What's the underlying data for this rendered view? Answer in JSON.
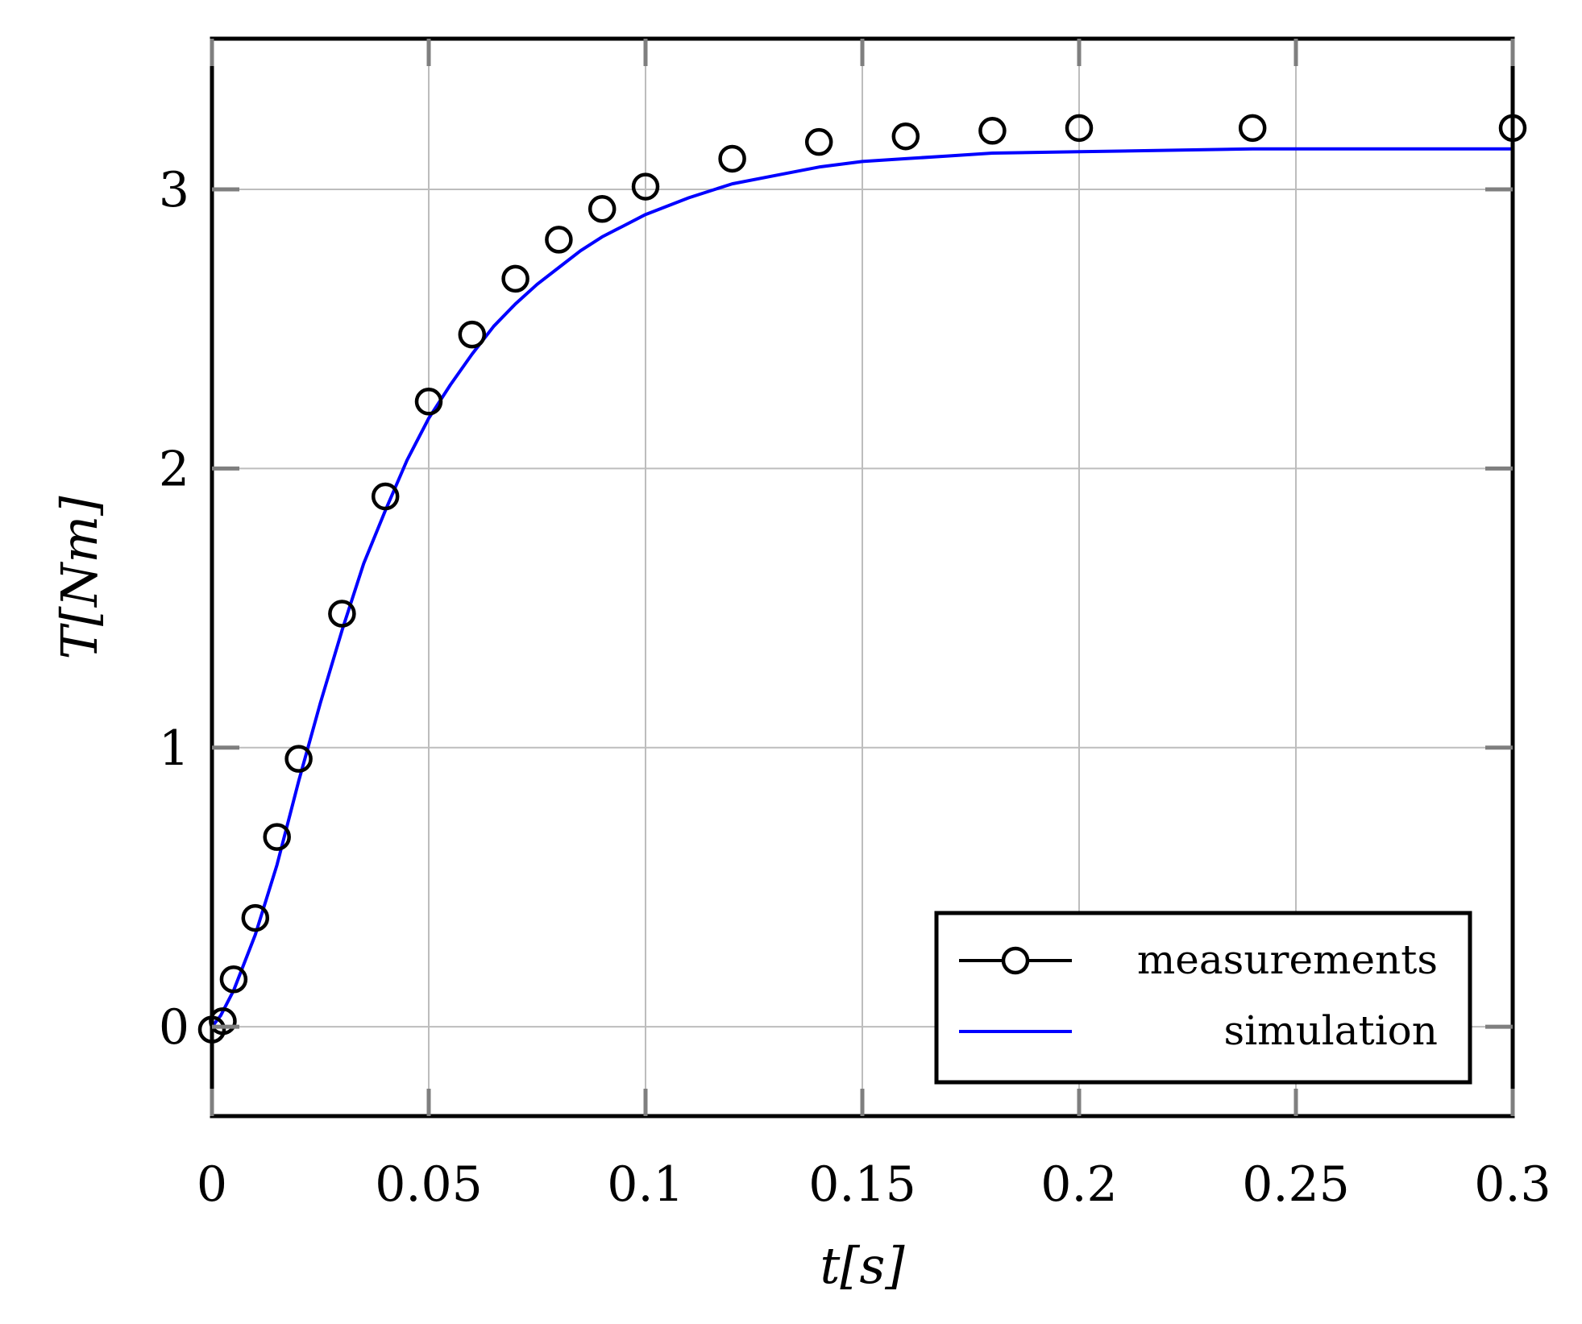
{
  "chart_data": {
    "type": "line",
    "xlabel": "t[s]",
    "ylabel": "T[Nm]",
    "xlim": [
      0,
      0.3
    ],
    "ylim": [
      -0.32,
      3.54
    ],
    "xticks": [
      0,
      0.05,
      0.1,
      0.15,
      0.2,
      0.25,
      0.3
    ],
    "xtick_labels": [
      "0",
      "0.05",
      "0.1",
      "0.15",
      "0.2",
      "0.25",
      "0.3"
    ],
    "yticks": [
      0,
      1,
      2,
      3
    ],
    "ytick_labels": [
      "0",
      "1",
      "2",
      "3"
    ],
    "grid": true,
    "legend_position": "bottom-right",
    "colors": {
      "measurements": "#000000",
      "simulation": "#0000ff"
    },
    "series": [
      {
        "name": "measurements",
        "style": "markers",
        "marker": "circle",
        "x": [
          0,
          0.0025,
          0.005,
          0.01,
          0.015,
          0.02,
          0.03,
          0.04,
          0.05,
          0.06,
          0.07,
          0.08,
          0.09,
          0.1,
          0.12,
          0.14,
          0.16,
          0.18,
          0.2,
          0.24,
          0.3
        ],
        "y": [
          -0.01,
          0.02,
          0.17,
          0.39,
          0.68,
          0.96,
          1.48,
          1.9,
          2.24,
          2.48,
          2.68,
          2.82,
          2.93,
          3.01,
          3.11,
          3.17,
          3.19,
          3.21,
          3.22,
          3.22,
          3.22
        ]
      },
      {
        "name": "simulation",
        "style": "line",
        "x": [
          0,
          0.002,
          0.005,
          0.01,
          0.015,
          0.02,
          0.025,
          0.03,
          0.035,
          0.04,
          0.045,
          0.05,
          0.055,
          0.06,
          0.065,
          0.07,
          0.075,
          0.08,
          0.085,
          0.09,
          0.095,
          0.1,
          0.11,
          0.12,
          0.13,
          0.14,
          0.15,
          0.16,
          0.17,
          0.18,
          0.2,
          0.24,
          0.3
        ],
        "y": [
          0,
          0.04,
          0.13,
          0.33,
          0.58,
          0.88,
          1.16,
          1.42,
          1.66,
          1.85,
          2.03,
          2.18,
          2.3,
          2.41,
          2.51,
          2.59,
          2.66,
          2.72,
          2.78,
          2.83,
          2.87,
          2.91,
          2.97,
          3.02,
          3.05,
          3.08,
          3.1,
          3.11,
          3.12,
          3.13,
          3.135,
          3.145,
          3.145
        ]
      }
    ]
  }
}
